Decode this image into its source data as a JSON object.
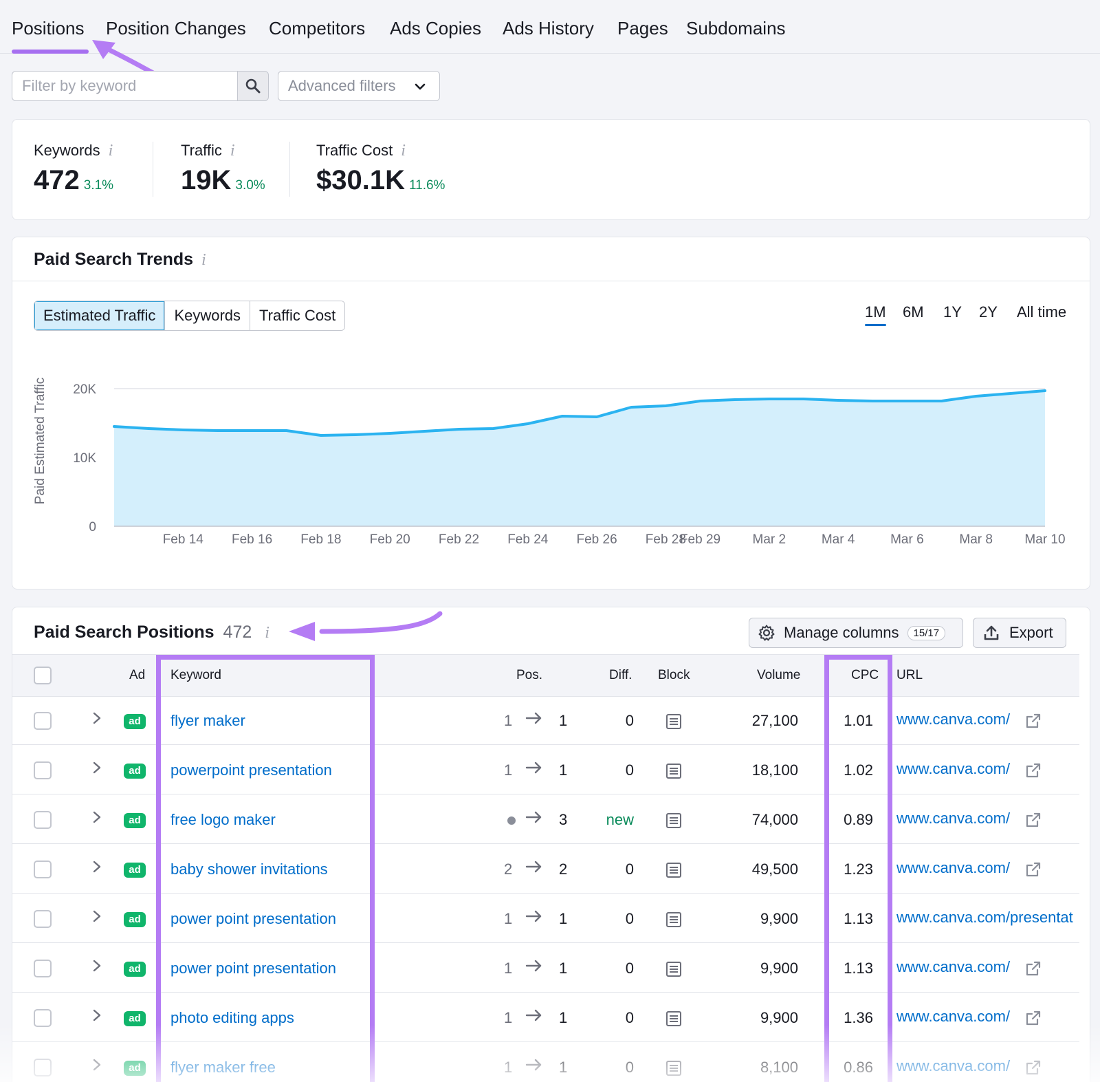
{
  "tabs": [
    "Positions",
    "Position Changes",
    "Competitors",
    "Ads Copies",
    "Ads History",
    "Pages",
    "Subdomains"
  ],
  "active_tab": "Positions",
  "filter": {
    "placeholder": "Filter by keyword",
    "advanced_label": "Advanced filters"
  },
  "kpis": [
    {
      "label": "Keywords",
      "value": "472",
      "delta": "3.1%"
    },
    {
      "label": "Traffic",
      "value": "19K",
      "delta": "3.0%"
    },
    {
      "label": "Traffic Cost",
      "value": "$30.1K",
      "delta": "11.6%"
    }
  ],
  "info_glyph": "i",
  "trends": {
    "title": "Paid Search Trends",
    "metric_tabs": [
      "Estimated Traffic",
      "Keywords",
      "Traffic Cost"
    ],
    "active_metric": "Estimated Traffic",
    "ranges": [
      "1M",
      "6M",
      "1Y",
      "2Y",
      "All time"
    ],
    "active_range": "1M"
  },
  "chart_data": {
    "type": "area",
    "ylabel": "Paid Estimated Traffic",
    "ylim": [
      0,
      20000
    ],
    "yticks": [
      "20K",
      "10K",
      "0"
    ],
    "xticks": [
      "Feb 14",
      "Feb 16",
      "Feb 18",
      "Feb 20",
      "Feb 22",
      "Feb 24",
      "Feb 26",
      "Feb 28",
      "Feb 29",
      "Mar 2",
      "Mar 4",
      "Mar 6",
      "Mar 8",
      "Mar 10"
    ],
    "series": [
      {
        "color": "#2bb3f0",
        "fill": "#d4effc",
        "x": [
          "Feb 12",
          "Feb 13",
          "Feb 14",
          "Feb 15",
          "Feb 16",
          "Feb 17",
          "Feb 18",
          "Feb 19",
          "Feb 20",
          "Feb 21",
          "Feb 22",
          "Feb 23",
          "Feb 24",
          "Feb 25",
          "Feb 26",
          "Feb 27",
          "Feb 28",
          "Feb 29",
          "Mar 1",
          "Mar 2",
          "Mar 3",
          "Mar 4",
          "Mar 5",
          "Mar 6",
          "Mar 7",
          "Mar 8",
          "Mar 9",
          "Mar 10"
        ],
        "values": [
          14500,
          14200,
          14000,
          13900,
          13900,
          13900,
          13200,
          13300,
          13500,
          13800,
          14100,
          14200,
          14900,
          16000,
          15900,
          17300,
          17500,
          18200,
          18400,
          18500,
          18500,
          18300,
          18200,
          18200,
          18200,
          18900,
          19300,
          19700
        ]
      }
    ],
    "grid": true
  },
  "positions": {
    "title": "Paid Search Positions",
    "count": "472",
    "manage_label": "Manage columns",
    "manage_count": "15/17",
    "export_label": "Export",
    "columns": {
      "ad": "Ad",
      "keyword": "Keyword",
      "pos": "Pos.",
      "diff": "Diff.",
      "block": "Block",
      "volume": "Volume",
      "cpc": "CPC",
      "url": "URL"
    },
    "ad_badge": "ad",
    "rows": [
      {
        "keyword": "flyer maker",
        "pos_from": "1",
        "pos_to": "1",
        "diff": "0",
        "volume": "27,100",
        "cpc": "1.01",
        "url": "www.canva.com/"
      },
      {
        "keyword": "powerpoint presentation",
        "pos_from": "1",
        "pos_to": "1",
        "diff": "0",
        "volume": "18,100",
        "cpc": "1.02",
        "url": "www.canva.com/"
      },
      {
        "keyword": "free logo maker",
        "pos_from": "",
        "pos_to": "3",
        "diff": "new",
        "volume": "74,000",
        "cpc": "0.89",
        "url": "www.canva.com/"
      },
      {
        "keyword": "baby shower invitations",
        "pos_from": "2",
        "pos_to": "2",
        "diff": "0",
        "volume": "49,500",
        "cpc": "1.23",
        "url": "www.canva.com/"
      },
      {
        "keyword": "power point presentation",
        "pos_from": "1",
        "pos_to": "1",
        "diff": "0",
        "volume": "9,900",
        "cpc": "1.13",
        "url": "www.canva.com/presentat"
      },
      {
        "keyword": "power point presentation",
        "pos_from": "1",
        "pos_to": "1",
        "diff": "0",
        "volume": "9,900",
        "cpc": "1.13",
        "url": "www.canva.com/"
      },
      {
        "keyword": "photo editing apps",
        "pos_from": "1",
        "pos_to": "1",
        "diff": "0",
        "volume": "9,900",
        "cpc": "1.36",
        "url": "www.canva.com/"
      },
      {
        "keyword": "flyer maker free",
        "pos_from": "1",
        "pos_to": "1",
        "diff": "0",
        "volume": "8,100",
        "cpc": "0.86",
        "url": "www.canva.com/"
      }
    ]
  },
  "colors": {
    "accent": "#a66ff0",
    "link": "#006dca",
    "positive": "#0b8b5b",
    "ad_badge": "#10b56b",
    "highlight": "#b47cf4"
  }
}
